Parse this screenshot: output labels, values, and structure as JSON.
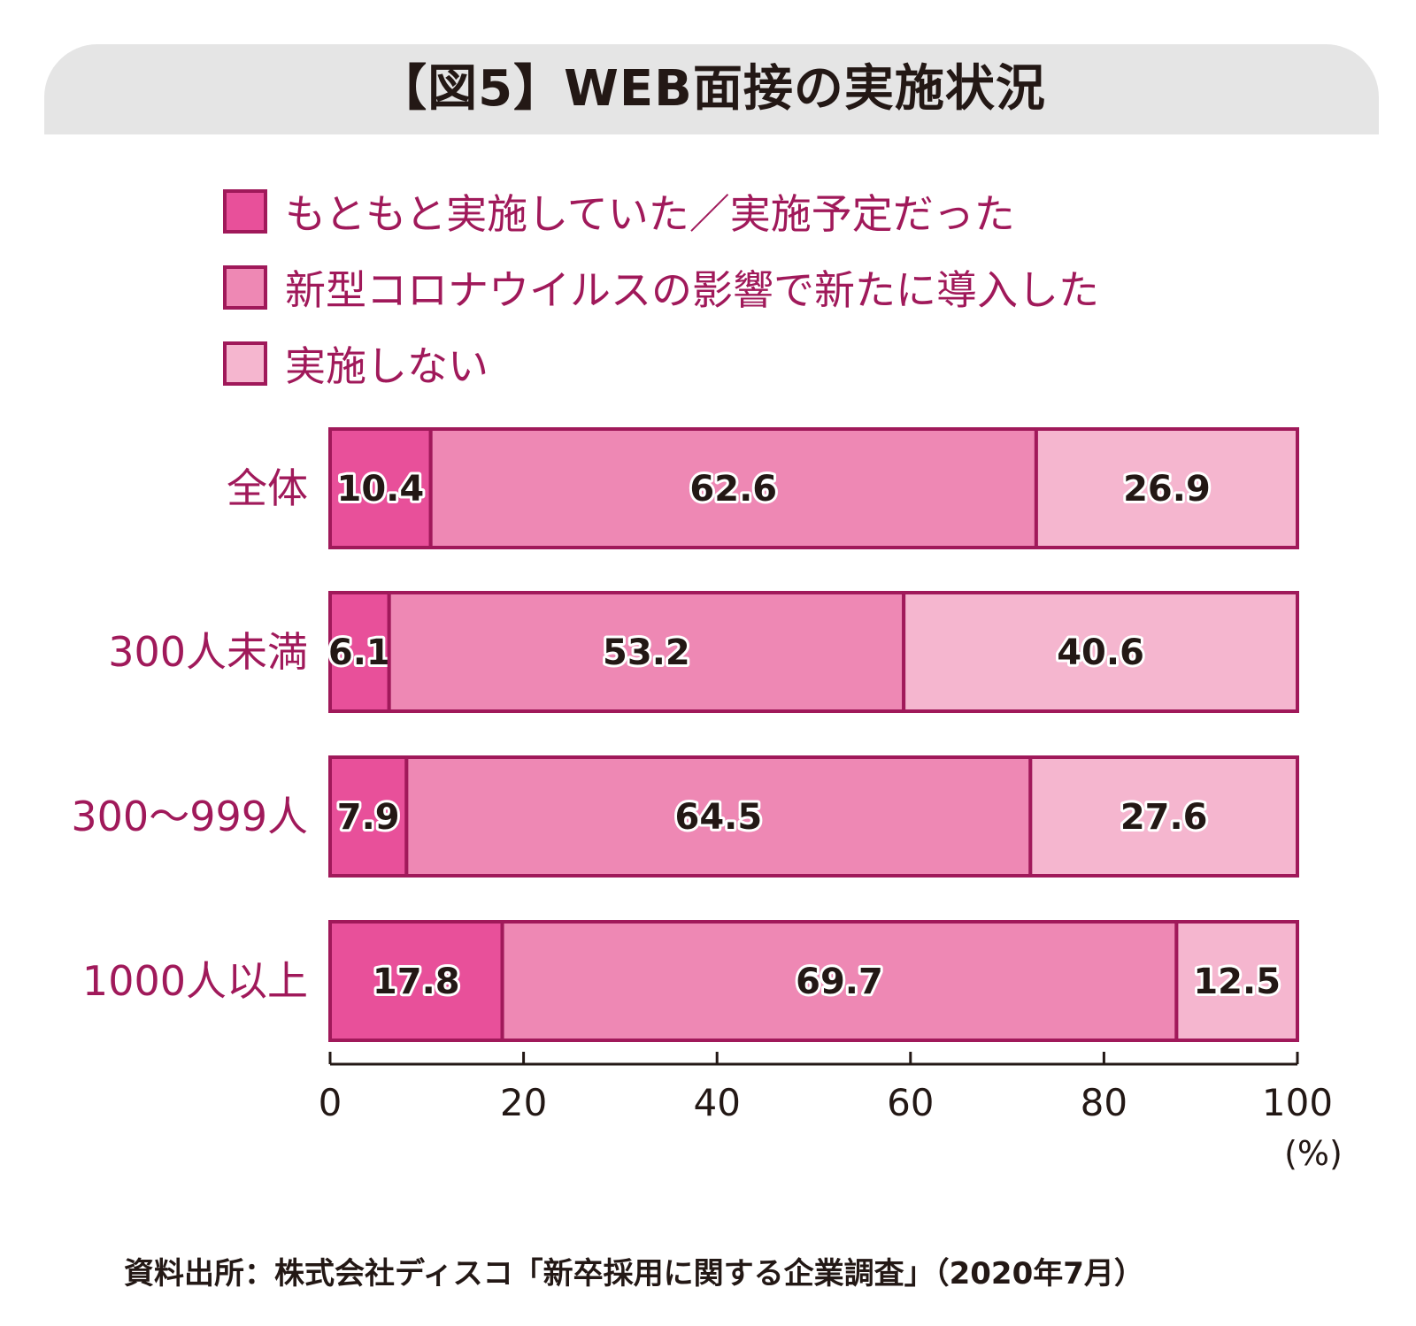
{
  "title": "【図5】WEB面接の実施状況",
  "source": "資料出所：株式会社ディスコ「新卒採用に関する企業調査」（2020年7月）",
  "colors": {
    "series1": "#e8509a",
    "series2": "#ee88b4",
    "series3": "#f5b6cf",
    "border": "#a0195a",
    "text_magenta": "#a0195a",
    "axis": "#231815",
    "title_band": "#e5e5e5"
  },
  "chart_data": {
    "type": "bar",
    "orientation": "horizontal",
    "stacked": true,
    "title": "【図5】WEB面接の実施状況",
    "categories": [
      "全体",
      "300人未満",
      "300～999人",
      "1000人以上"
    ],
    "series": [
      {
        "name": "もともと実施していた／実施予定だった",
        "values": [
          10.4,
          6.1,
          7.9,
          17.8
        ]
      },
      {
        "name": "新型コロナウイルスの影響で新たに導入した",
        "values": [
          62.6,
          53.2,
          64.5,
          69.7
        ]
      },
      {
        "name": "実施しない",
        "values": [
          26.9,
          40.6,
          27.6,
          12.5
        ]
      }
    ],
    "xlim": [
      0,
      100
    ],
    "xticks": [
      "0",
      "20",
      "40",
      "60",
      "80",
      "100"
    ],
    "xunit": "(%)",
    "legend_position": "top",
    "grid": false
  }
}
